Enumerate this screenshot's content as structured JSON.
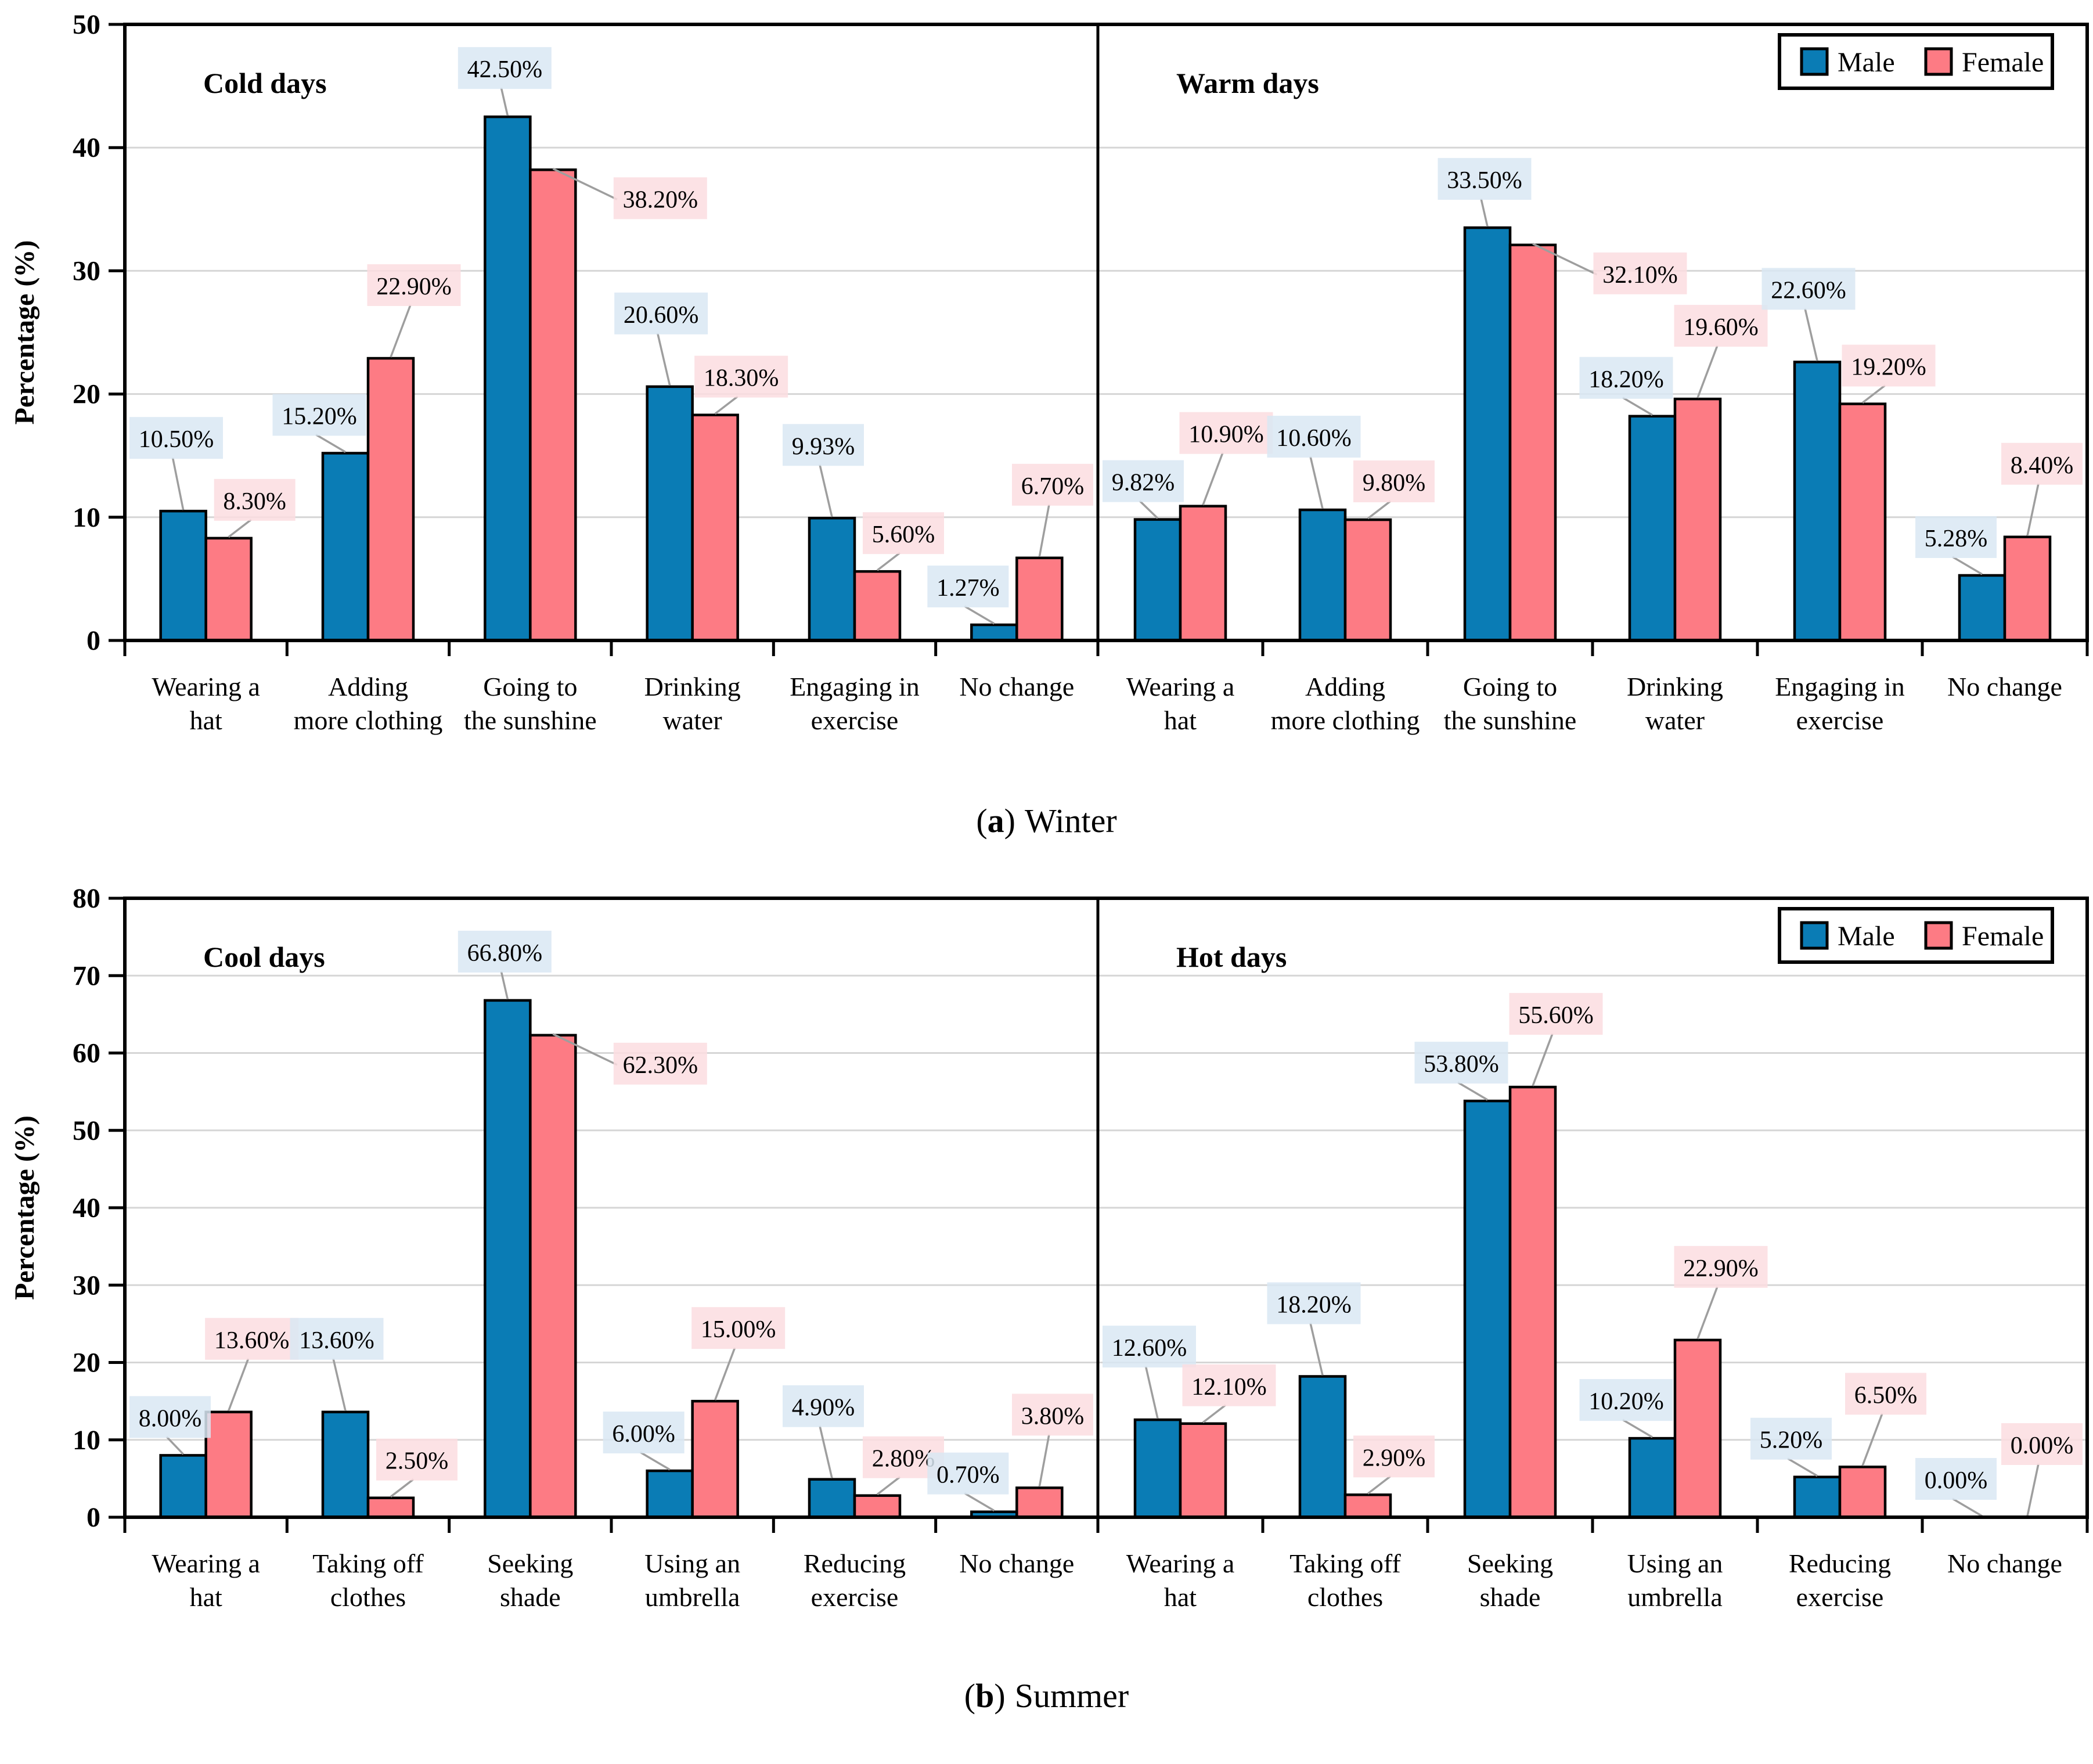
{
  "colors": {
    "male_bar": "#0a7cb5",
    "female_bar": "#fd7b84",
    "bar_border": "#000000",
    "male_label_bg": "#d9e7f3",
    "female_label_bg": "#fcdde1",
    "gridline": "#d6d6d6",
    "leader_line": "#9e9e9e",
    "plot_border": "#000000",
    "background": "#ffffff"
  },
  "chart_data": [
    {
      "type": "bar",
      "id": "winter",
      "caption": {
        "open": "(",
        "letter": "a",
        "close": ")",
        "season": "Winter"
      },
      "ylabel": "Percentage (%)",
      "ylim": [
        0,
        50
      ],
      "ytick_step": 10,
      "grid": true,
      "legend": {
        "position": "top-right",
        "entries": [
          "Male",
          "Female"
        ]
      },
      "subpanels": [
        {
          "title": "Cold days",
          "categories": [
            [
              "Wearing a",
              "hat"
            ],
            [
              "Adding",
              "more clothing"
            ],
            [
              "Going to",
              "the sunshine"
            ],
            [
              "Drinking",
              "water"
            ],
            [
              "Engaging in",
              "exercise"
            ],
            [
              "No change"
            ]
          ],
          "series": [
            {
              "name": "Male",
              "values": [
                10.5,
                15.2,
                42.5,
                20.6,
                9.93,
                1.27
              ],
              "labels": [
                "10.50%",
                "15.20%",
                "42.50%",
                "20.60%",
                "9.93%",
                "1.27%"
              ]
            },
            {
              "name": "Female",
              "values": [
                8.3,
                22.9,
                38.2,
                18.3,
                5.6,
                6.7
              ],
              "labels": [
                "8.30%",
                "22.90%",
                "38.20%",
                "18.30%",
                "5.60%",
                "6.70%"
              ]
            }
          ]
        },
        {
          "title": "Warm days",
          "categories": [
            [
              "Wearing a",
              "hat"
            ],
            [
              "Adding",
              "more clothing"
            ],
            [
              "Going to",
              "the sunshine"
            ],
            [
              "Drinking",
              "water"
            ],
            [
              "Engaging in",
              "exercise"
            ],
            [
              "No change"
            ]
          ],
          "series": [
            {
              "name": "Male",
              "values": [
                9.82,
                10.6,
                33.5,
                18.2,
                22.6,
                5.28
              ],
              "labels": [
                "9.82%",
                "10.60%",
                "33.50%",
                "18.20%",
                "22.60%",
                "5.28%"
              ]
            },
            {
              "name": "Female",
              "values": [
                10.9,
                9.8,
                32.1,
                19.6,
                19.2,
                8.4
              ],
              "labels": [
                "10.90%",
                "9.80%",
                "32.10%",
                "19.60%",
                "19.20%",
                "8.40%"
              ]
            }
          ]
        }
      ]
    },
    {
      "type": "bar",
      "id": "summer",
      "caption": {
        "open": "(",
        "letter": "b",
        "close": ")",
        "season": "Summer"
      },
      "ylabel": "Percentage (%)",
      "ylim": [
        0,
        80
      ],
      "ytick_step": 10,
      "grid": true,
      "legend": {
        "position": "top-right",
        "entries": [
          "Male",
          "Female"
        ]
      },
      "subpanels": [
        {
          "title": "Cool days",
          "categories": [
            [
              "Wearing a",
              "hat"
            ],
            [
              "Taking off",
              "clothes"
            ],
            [
              "Seeking",
              "shade"
            ],
            [
              "Using  an",
              "umbrella"
            ],
            [
              "Reducing",
              "exercise"
            ],
            [
              "No change"
            ]
          ],
          "series": [
            {
              "name": "Male",
              "values": [
                8.0,
                13.6,
                66.8,
                6.0,
                4.9,
                0.7
              ],
              "labels": [
                "8.00%",
                "13.60%",
                "66.80%",
                "6.00%",
                "4.90%",
                "0.70%"
              ]
            },
            {
              "name": "Female",
              "values": [
                13.6,
                2.5,
                62.3,
                15.0,
                2.8,
                3.8
              ],
              "labels": [
                "13.60%",
                "2.50%",
                "62.30%",
                "15.00%",
                "2.80%",
                "3.80%"
              ]
            }
          ]
        },
        {
          "title": "Hot days",
          "categories": [
            [
              "Wearing a",
              "hat"
            ],
            [
              "Taking off",
              "clothes"
            ],
            [
              "Seeking",
              "shade"
            ],
            [
              "Using  an",
              "umbrella"
            ],
            [
              "Reducing",
              "exercise"
            ],
            [
              "No change"
            ]
          ],
          "series": [
            {
              "name": "Male",
              "values": [
                12.6,
                18.2,
                53.8,
                10.2,
                5.2,
                0.0
              ],
              "labels": [
                "12.60%",
                "18.20%",
                "53.80%",
                "10.20%",
                "5.20%",
                "0.00%"
              ]
            },
            {
              "name": "Female",
              "values": [
                12.1,
                2.9,
                55.6,
                22.9,
                6.5,
                0.0
              ],
              "labels": [
                "12.10%",
                "2.90%",
                "55.60%",
                "22.90%",
                "6.50%",
                "0.00%"
              ]
            }
          ]
        }
      ]
    }
  ]
}
